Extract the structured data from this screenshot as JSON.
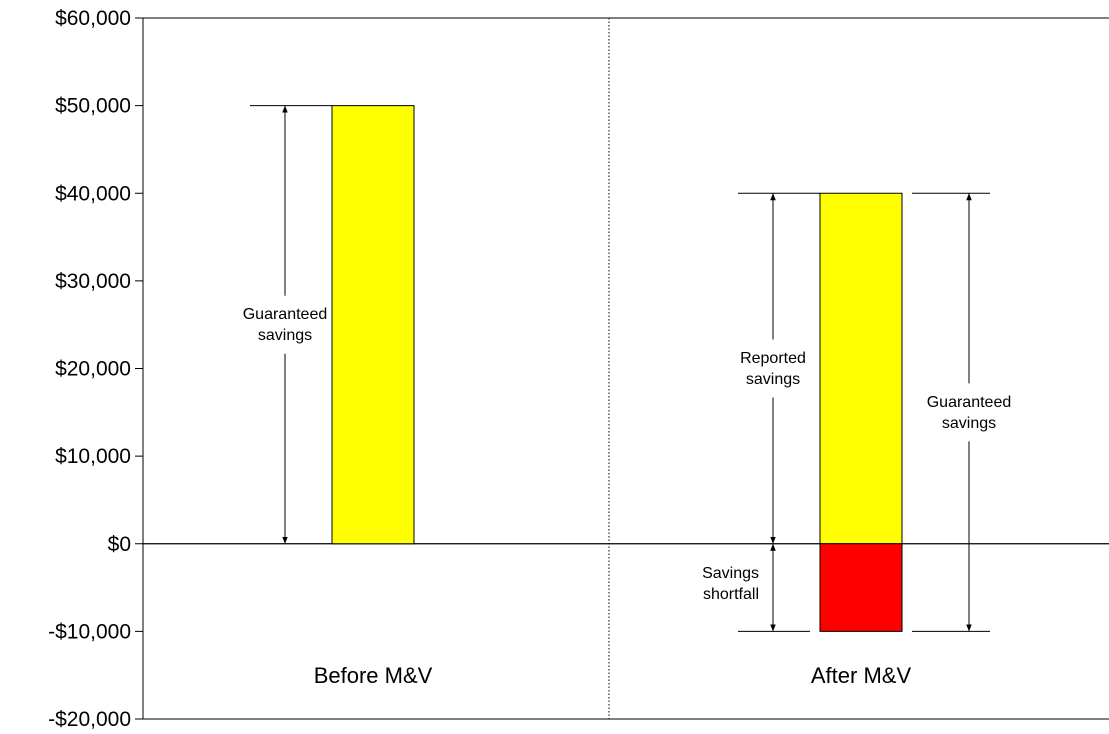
{
  "chart_data": {
    "type": "bar",
    "title": "",
    "xlabel": "",
    "ylabel": "",
    "ylim": [
      -20000,
      60000
    ],
    "y_ticks": [
      -20000,
      -10000,
      0,
      10000,
      20000,
      30000,
      40000,
      50000,
      60000
    ],
    "y_tick_labels": [
      "-$20,000",
      "-$10,000",
      "$0",
      "$10,000",
      "$20,000",
      "$30,000",
      "$40,000",
      "$50,000",
      "$60,000"
    ],
    "grid": false,
    "legend": "none",
    "categories": [
      "Before M&V",
      "After M&V"
    ],
    "bars": [
      {
        "category": "Before M&V",
        "from": 0,
        "to": 50000,
        "color": "#ffff00"
      },
      {
        "category": "After M&V",
        "from": 0,
        "to": 40000,
        "color": "#ffff00"
      },
      {
        "category": "After M&V",
        "from": -10000,
        "to": 0,
        "color": "#ff0000"
      }
    ],
    "annotations": [
      {
        "id": "before-guaranteed",
        "category": "Before M&V",
        "side": "left",
        "from": 0,
        "to": 50000,
        "lines": [
          "Guaranteed",
          "savings"
        ]
      },
      {
        "id": "after-reported",
        "category": "After M&V",
        "side": "left",
        "from": 0,
        "to": 40000,
        "lines": [
          "Reported",
          "savings"
        ]
      },
      {
        "id": "after-shortfall",
        "category": "After M&V",
        "side": "left",
        "from": -10000,
        "to": 0,
        "lines": [
          "Savings",
          "shortfall"
        ]
      },
      {
        "id": "after-guaranteed",
        "category": "After M&V",
        "side": "right",
        "from": -10000,
        "to": 40000,
        "lines": [
          "Guaranteed",
          "savings"
        ]
      }
    ]
  }
}
